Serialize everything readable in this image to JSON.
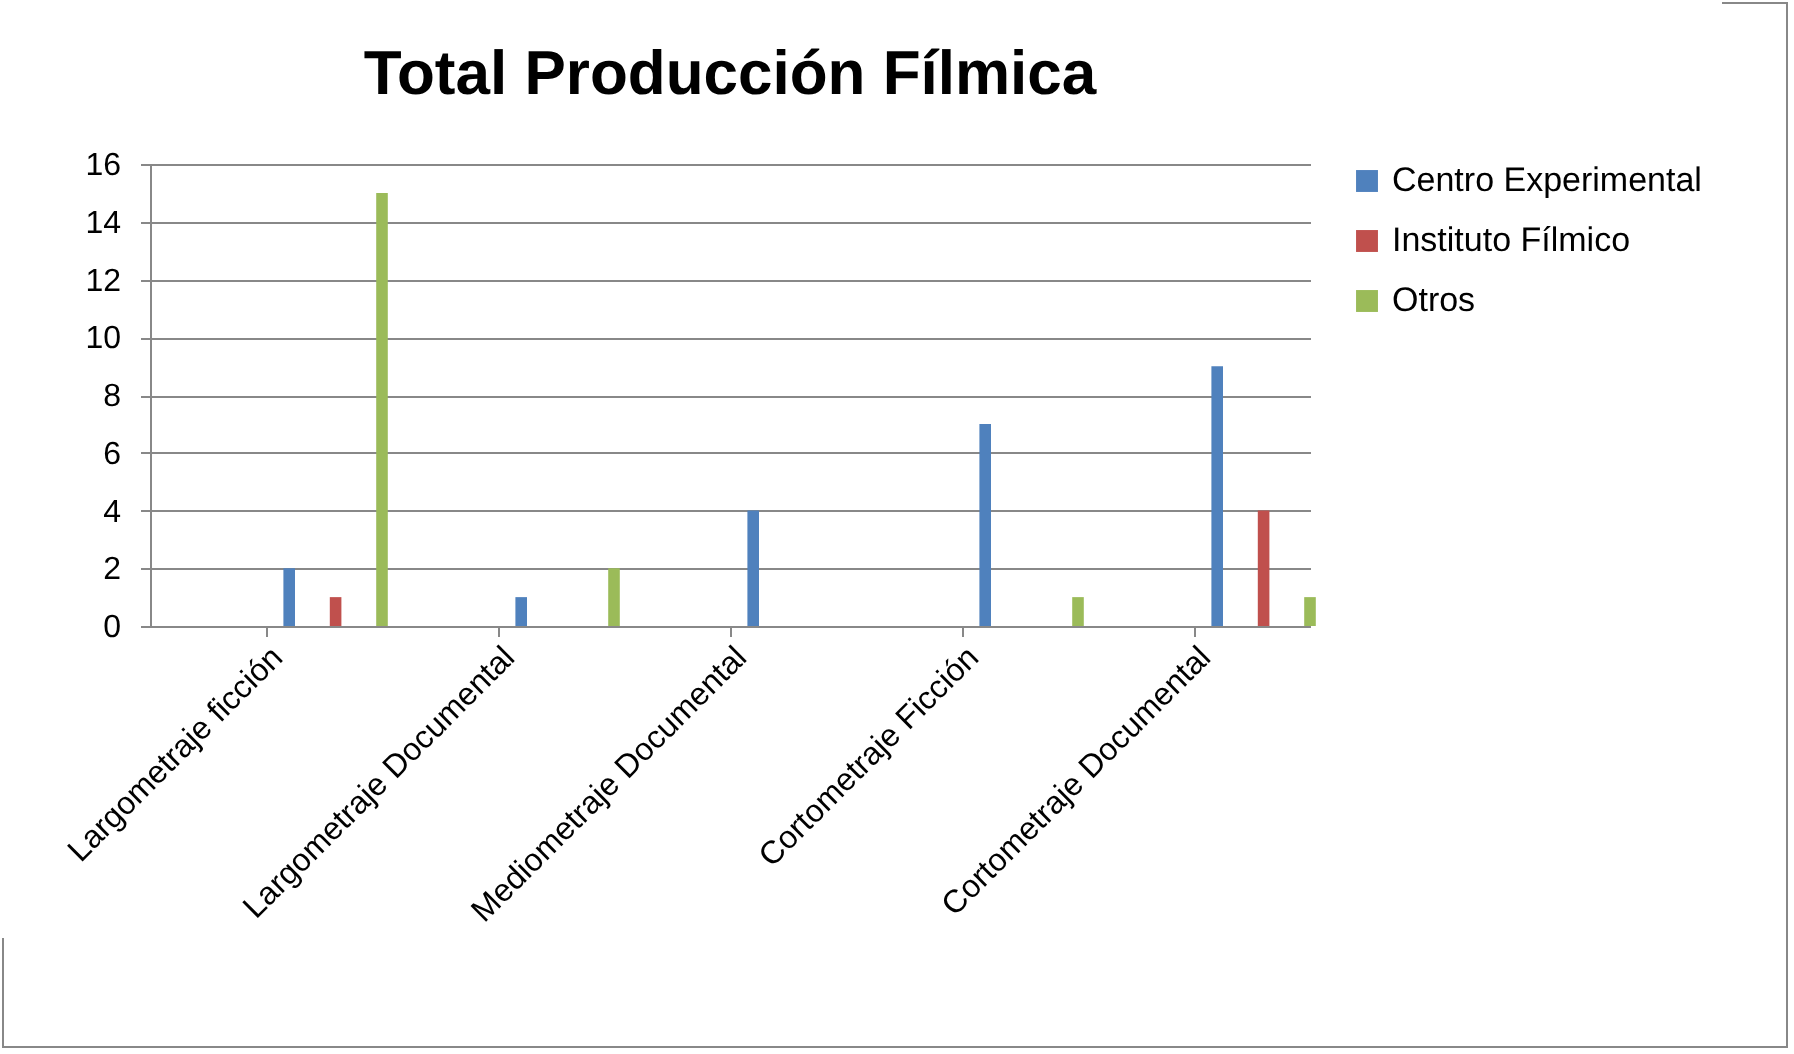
{
  "chart_data": {
    "type": "bar",
    "title": "Total Producción Fílmica",
    "categories": [
      "Largometraje ficción",
      "Largometraje Documental",
      "Mediometraje Documental",
      "Cortometraje Ficción",
      "Cortometraje Documental"
    ],
    "series": [
      {
        "name": "Centro Experimental",
        "color": "#4f81bd",
        "values": [
          2,
          1,
          4,
          7,
          9
        ]
      },
      {
        "name": "Instituto Fílmico",
        "color": "#c0504d",
        "values": [
          1,
          0,
          0,
          0,
          4
        ]
      },
      {
        "name": "Otros",
        "color": "#9bbb59",
        "values": [
          15,
          2,
          0,
          1,
          1
        ]
      }
    ],
    "ylim": [
      0,
      16
    ],
    "yticks": [
      0,
      2,
      4,
      6,
      8,
      10,
      12,
      14,
      16
    ],
    "grid": "y",
    "legend": "right"
  }
}
